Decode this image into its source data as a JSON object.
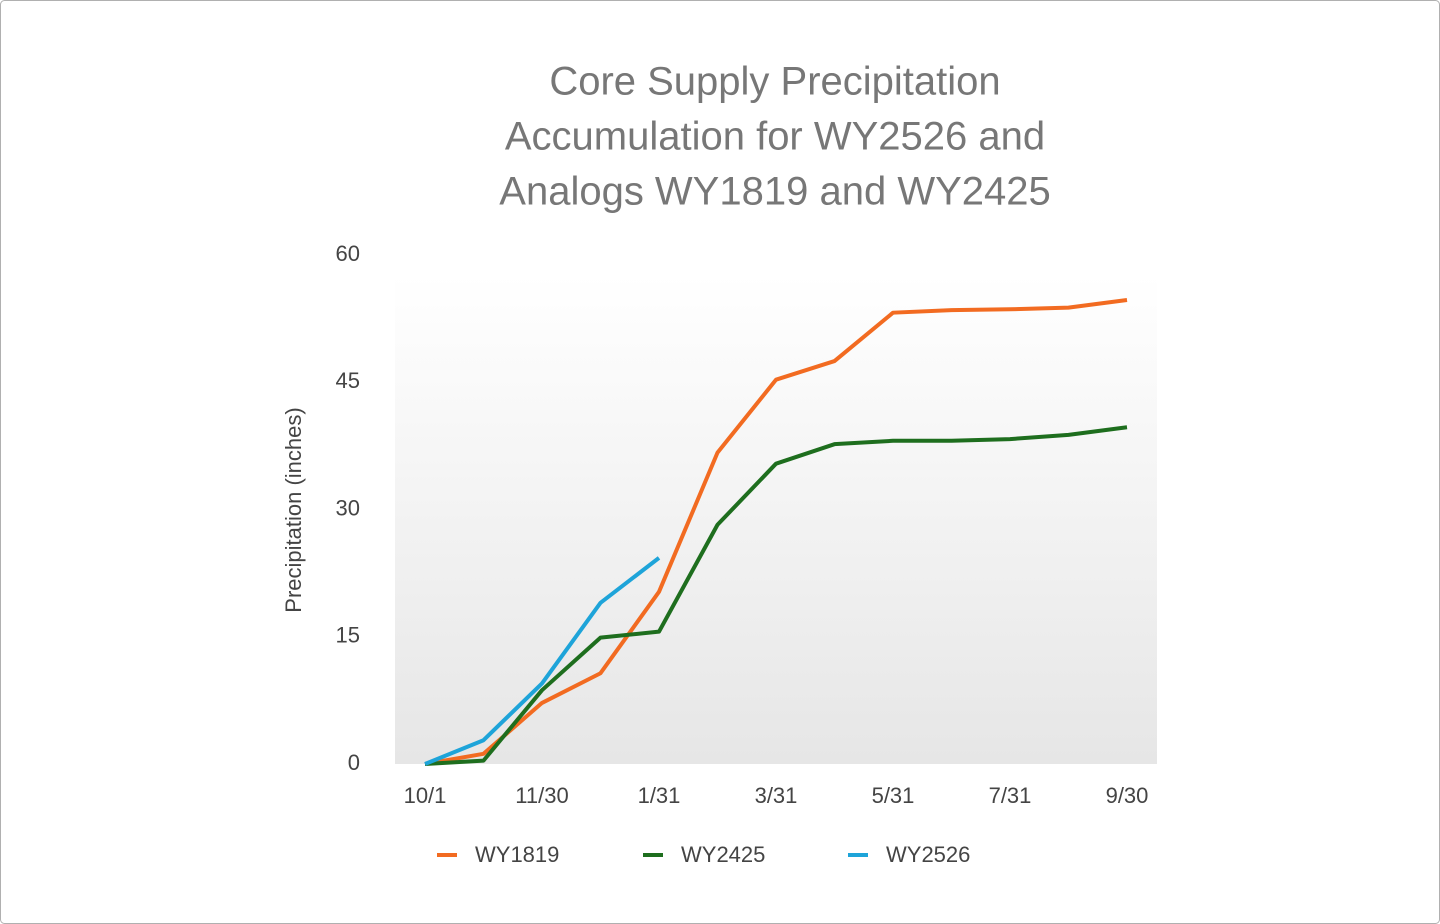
{
  "chart_data": {
    "type": "line",
    "title": [
      "Core Supply Precipitation",
      "Accumulation for WY2526 and",
      "Analogs WY1819 and WY2425"
    ],
    "y_label": "Precipitation (inches)",
    "categories": [
      "10/1",
      null,
      "11/30",
      null,
      "1/31",
      null,
      "3/31",
      null,
      "5/31",
      null,
      "7/31",
      null,
      "9/30"
    ],
    "series": [
      {
        "name": "WY1819",
        "color": "#f26b21",
        "values": [
          0,
          1.2,
          7.2,
          10.7,
          20.3,
          36.7,
          45.3,
          47.5,
          53.2,
          53.5,
          53.6,
          53.8,
          54.7
        ]
      },
      {
        "name": "WY2425",
        "color": "#1e6e1e",
        "values": [
          0,
          0.4,
          8.7,
          14.9,
          15.6,
          28.2,
          35.4,
          37.7,
          38.1,
          38.1,
          38.3,
          38.8,
          39.7
        ]
      },
      {
        "name": "WY2526",
        "color": "#1ea4d9",
        "values": [
          0,
          2.8,
          9.5,
          19.0,
          24.3,
          null,
          null,
          null,
          null,
          null,
          null,
          null,
          null
        ]
      }
    ],
    "ylim": [
      0,
      60
    ],
    "yticks": [
      0,
      15,
      30,
      45,
      60
    ],
    "grid": false,
    "legend": "bottom"
  }
}
